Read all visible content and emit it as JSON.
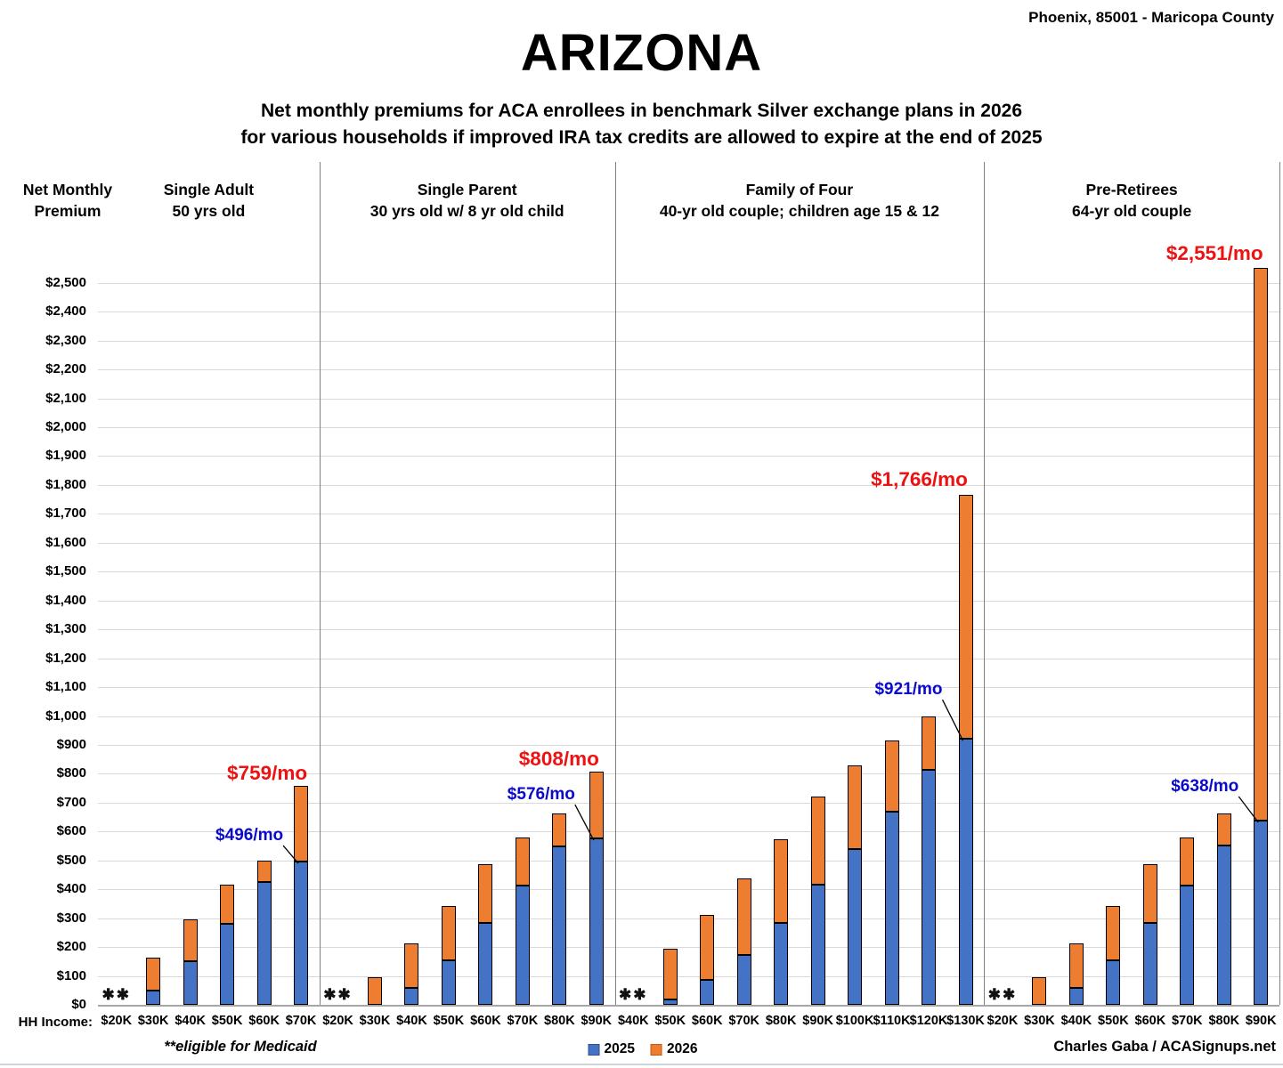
{
  "header": {
    "location": "Phoenix, 85001 - Maricopa County",
    "title": "ARIZONA",
    "subtitle_line1": "Net monthly premiums for ACA enrollees in benchmark Silver exchange plans in 2026",
    "subtitle_line2": "for various households if improved IRA tax credits are allowed to expire at the end of 2025"
  },
  "axis": {
    "y_title_line1": "Net Monthly",
    "y_title_line2": "Premium",
    "x_label": "HH Income:"
  },
  "legend": {
    "items": [
      {
        "label": "2025",
        "color": "#4472C4",
        "border": "#2F528F"
      },
      {
        "label": "2026",
        "color": "#ED7D31",
        "border": "#C55A11"
      }
    ]
  },
  "footer": {
    "medicaid_note": "**eligible for Medicaid",
    "credit": "Charles Gaba / ACASignups.net"
  },
  "colors": {
    "bar_2025": "#4472C4",
    "bar_2026": "#ED7D31",
    "bar_border": "#000000",
    "callout_2026_text": "#EE1111",
    "callout_2025_text": "#0A0ACD",
    "gridline": "#D9D9D9",
    "baseline": "#A6A6A6",
    "divider": "#808080",
    "leader_line": "#000000",
    "medicaid_marker": "#111111"
  },
  "chart_data": {
    "type": "bar",
    "stacked": true,
    "description": "Stacked bars: blue segment = 2025 net monthly premium; orange segment tops out at the 2026 net monthly premium if IRA credits expire. Total bar height = 2026 premium.",
    "y_axis": {
      "min": 0,
      "max": 2500,
      "step": 100,
      "format": "$#,##0"
    },
    "medicaid_marker": "✱✱",
    "groups": [
      {
        "label_line1": "Single Adult",
        "label_line2": "50 yrs old",
        "bars": [
          {
            "income": "$20K",
            "medicaid": true,
            "premium_2025": null,
            "premium_2026": null
          },
          {
            "income": "$30K",
            "medicaid": false,
            "premium_2025": 48,
            "premium_2026": 163
          },
          {
            "income": "$40K",
            "medicaid": false,
            "premium_2025": 152,
            "premium_2026": 297
          },
          {
            "income": "$50K",
            "medicaid": false,
            "premium_2025": 281,
            "premium_2026": 417
          },
          {
            "income": "$60K",
            "medicaid": false,
            "premium_2025": 425,
            "premium_2026": 500
          },
          {
            "income": "$70K",
            "medicaid": false,
            "premium_2025": 496,
            "premium_2026": 759
          }
        ],
        "callout_2026": "$759/mo",
        "callout_2025": "$496/mo"
      },
      {
        "label_line1": "Single Parent",
        "label_line2": "30 yrs old w/ 8 yr old child",
        "bars": [
          {
            "income": "$20K",
            "medicaid": true,
            "premium_2025": null,
            "premium_2026": null
          },
          {
            "income": "$30K",
            "medicaid": false,
            "premium_2025": 0,
            "premium_2026": 97
          },
          {
            "income": "$40K",
            "medicaid": false,
            "premium_2025": 60,
            "premium_2026": 214
          },
          {
            "income": "$50K",
            "medicaid": false,
            "premium_2025": 155,
            "premium_2026": 343
          },
          {
            "income": "$60K",
            "medicaid": false,
            "premium_2025": 285,
            "premium_2026": 487
          },
          {
            "income": "$70K",
            "medicaid": false,
            "premium_2025": 412,
            "premium_2026": 580
          },
          {
            "income": "$80K",
            "medicaid": false,
            "premium_2025": 550,
            "premium_2026": 663
          },
          {
            "income": "$90K",
            "medicaid": false,
            "premium_2025": 576,
            "premium_2026": 808
          }
        ],
        "callout_2026": "$808/mo",
        "callout_2025": "$576/mo"
      },
      {
        "label_line1": "Family of Four",
        "label_line2": "40-yr old couple; children age 15 & 12",
        "bars": [
          {
            "income": "$40K",
            "medicaid": true,
            "premium_2025": null,
            "premium_2026": null
          },
          {
            "income": "$50K",
            "medicaid": false,
            "premium_2025": 18,
            "premium_2026": 194
          },
          {
            "income": "$60K",
            "medicaid": false,
            "premium_2025": 85,
            "premium_2026": 310
          },
          {
            "income": "$70K",
            "medicaid": false,
            "premium_2025": 174,
            "premium_2026": 438
          },
          {
            "income": "$80K",
            "medicaid": false,
            "premium_2025": 283,
            "premium_2026": 573
          },
          {
            "income": "$90K",
            "medicaid": false,
            "premium_2025": 416,
            "premium_2026": 720
          },
          {
            "income": "$100K",
            "medicaid": false,
            "premium_2025": 540,
            "premium_2026": 830
          },
          {
            "income": "$110K",
            "medicaid": false,
            "premium_2025": 670,
            "premium_2026": 915
          },
          {
            "income": "$120K",
            "medicaid": false,
            "premium_2025": 813,
            "premium_2026": 1000
          },
          {
            "income": "$130K",
            "medicaid": false,
            "premium_2025": 921,
            "premium_2026": 1766
          }
        ],
        "callout_2026": "$1,766/mo",
        "callout_2025": "$921/mo"
      },
      {
        "label_line1": "Pre-Retirees",
        "label_line2": "64-yr old couple",
        "bars": [
          {
            "income": "$20K",
            "medicaid": true,
            "premium_2025": null,
            "premium_2026": null
          },
          {
            "income": "$30K",
            "medicaid": false,
            "premium_2025": 0,
            "premium_2026": 97
          },
          {
            "income": "$40K",
            "medicaid": false,
            "premium_2025": 60,
            "premium_2026": 214
          },
          {
            "income": "$50K",
            "medicaid": false,
            "premium_2025": 155,
            "premium_2026": 343
          },
          {
            "income": "$60K",
            "medicaid": false,
            "premium_2025": 285,
            "premium_2026": 487
          },
          {
            "income": "$70K",
            "medicaid": false,
            "premium_2025": 412,
            "premium_2026": 580
          },
          {
            "income": "$80K",
            "medicaid": false,
            "premium_2025": 552,
            "premium_2026": 663
          },
          {
            "income": "$90K",
            "medicaid": false,
            "premium_2025": 638,
            "premium_2026": 2551
          }
        ],
        "callout_2026": "$2,551/mo",
        "callout_2025": "$638/mo"
      }
    ]
  }
}
